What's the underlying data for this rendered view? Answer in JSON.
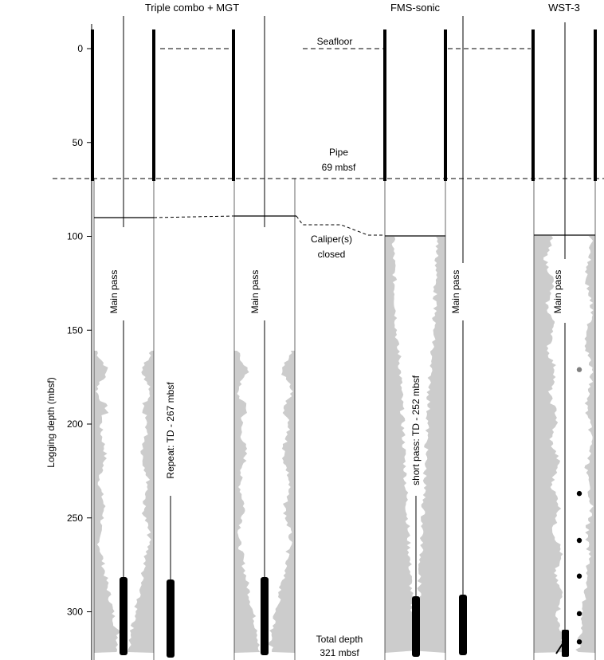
{
  "headers": {
    "triple_combo": "Triple combo  +  MGT",
    "fms_sonic": "FMS-sonic",
    "wst": "WST-3"
  },
  "axis": {
    "label": "Logging depth (mbsf)",
    "ticks": [
      0,
      50,
      100,
      150,
      200,
      250,
      300
    ]
  },
  "annotations": {
    "seafloor": "Seafloor",
    "pipe_line1": "Pipe",
    "pipe_line2": "69 mbsf",
    "caliper_line1": "Caliper(s)",
    "caliper_line2": "closed",
    "total_depth_line1": "Total depth",
    "total_depth_line2": "321 mbsf"
  },
  "pass_labels": {
    "main1": "Main pass",
    "repeat": "Repeat: TD - 267 mbsf",
    "main2": "Main pass",
    "short": "short pass: TD - 252 mbsf",
    "main3": "Main pass",
    "main4": "Main pass"
  },
  "depths": {
    "seafloor": 0,
    "pipe": 69,
    "caliper_close_triple": 89,
    "caliper_close_fms": 99,
    "total_depth": 321,
    "repeat_td": 267,
    "short_td": 252
  },
  "wst_stations": [
    {
      "depth": 171,
      "color": "#808080"
    },
    {
      "depth": 237,
      "color": "#000000"
    },
    {
      "depth": 262,
      "color": "#000000"
    },
    {
      "depth": 281,
      "color": "#000000"
    },
    {
      "depth": 301,
      "color": "#000000"
    },
    {
      "depth": 316,
      "color": "#000000"
    }
  ],
  "colors": {
    "borehole_fill": "#cccccc",
    "line": "#000000",
    "grey_station": "#808080"
  }
}
